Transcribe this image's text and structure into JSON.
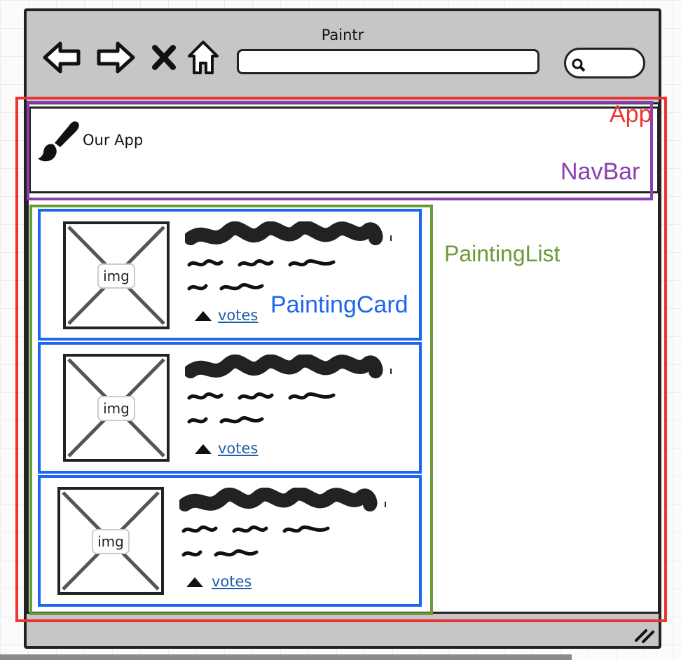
{
  "window": {
    "title": "Paintr",
    "toolbar_icons": [
      "back-arrow-icon",
      "forward-arrow-icon",
      "stop-x-icon",
      "home-icon",
      "search-icon"
    ]
  },
  "app": {
    "name": "Our App",
    "logo_icon": "paintbrush-icon"
  },
  "annotations": {
    "app": "App",
    "navbar": "NavBar",
    "painting_list": "PaintingList",
    "painting_card": "PaintingCard"
  },
  "colors": {
    "app": "#ee3333",
    "navbar": "#8a3fb0",
    "painting_list": "#6a9a3a",
    "painting_card": "#1e66f0"
  },
  "cards": [
    {
      "image_label": "img",
      "vote_link": "votes"
    },
    {
      "image_label": "img",
      "vote_link": "votes"
    },
    {
      "image_label": "img",
      "vote_link": "votes"
    }
  ]
}
